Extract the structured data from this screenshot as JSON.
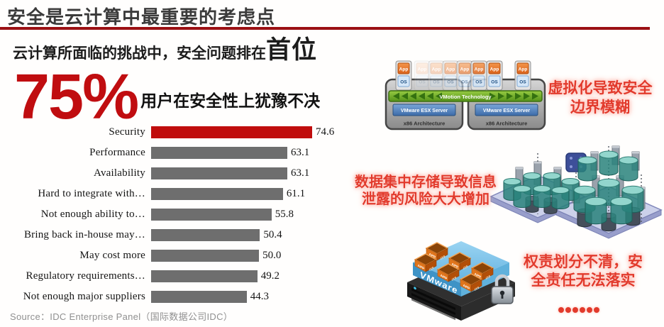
{
  "slide": {
    "title": "安全是云计算中最重要的考虑点",
    "subtitle_prefix": "云计算所面临的挑战中，安全问题排在",
    "subtitle_highlight": "首位",
    "stat_value": "75%",
    "stat_label": "用户在安全性上犹豫不决",
    "source": "Source：IDC Enterprise Panel（国际数据公司IDC）"
  },
  "chart_data": {
    "type": "bar",
    "orientation": "horizontal",
    "categories": [
      "Security",
      "Performance",
      "Availability",
      "Hard to integrate with…",
      "Not enough ability to…",
      "Bring back in-house may…",
      "May cost more",
      "Regulatory requirements…",
      "Not enough major suppliers"
    ],
    "values": [
      74.6,
      63.1,
      63.1,
      61.1,
      55.8,
      50.4,
      50.0,
      49.2,
      44.3
    ],
    "value_format": "one_decimal",
    "highlight_index": 0,
    "highlight_color": "#c00d0d",
    "bar_color": "#6e6e6e",
    "xlim": [
      0,
      80
    ],
    "grid": false,
    "legend": false,
    "value_labels_shown": true
  },
  "annotations": {
    "virtualization": {
      "lines": [
        "虚拟化导致安全",
        "边界模糊"
      ]
    },
    "data_concentration": {
      "lines": [
        "数据集中存储导致信息",
        "泄露的风险大大增加"
      ]
    },
    "responsibility": {
      "lines": [
        "权责划分不清，安",
        "全责任无法落实"
      ]
    },
    "ellipsis_dots": 6
  },
  "diagrams": {
    "vmotion": {
      "green_bar_label": "VMotion Technology",
      "server_label": "VMware ESX Server",
      "arch_label": "x86 Architecture",
      "app_label": "App",
      "os_label": "OS"
    },
    "vmware_cube": {
      "platform_label": "VMware",
      "box_top_label": "APP",
      "box_side_label": "OS"
    }
  },
  "colors": {
    "accent_red": "#c00d10",
    "rule_red": "#9b1013",
    "glow_text_red": "#e23a2c",
    "title_gray": "#3b3b3b",
    "bar_gray": "#6e6e6e",
    "source_gray": "#909090"
  }
}
